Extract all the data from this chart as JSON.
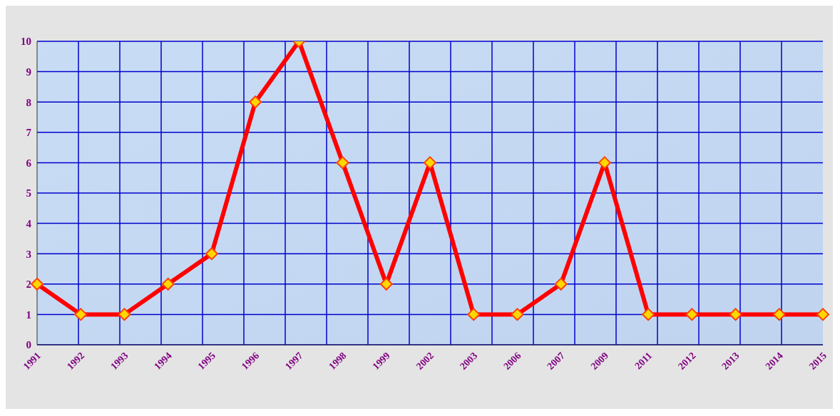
{
  "chart_data": {
    "type": "line",
    "categories": [
      "1991",
      "1992",
      "1993",
      "1994",
      "1995",
      "1996",
      "1997",
      "1998",
      "1999",
      "2002",
      "2003",
      "2006",
      "2007",
      "2009",
      "2011",
      "2012",
      "2013",
      "2014",
      "2015"
    ],
    "series": [
      {
        "color": "#ff0000",
        "values": [
          2,
          1,
          1,
          2,
          3,
          8,
          10,
          6,
          2,
          6,
          1,
          1,
          2,
          6,
          1,
          1,
          1,
          1,
          1
        ]
      }
    ],
    "ylim": [
      0,
      10
    ],
    "yticks": [
      0,
      1,
      2,
      3,
      4,
      5,
      6,
      7,
      8,
      9,
      10
    ],
    "grid": true,
    "marker": "diamond",
    "line_style": "solid"
  }
}
